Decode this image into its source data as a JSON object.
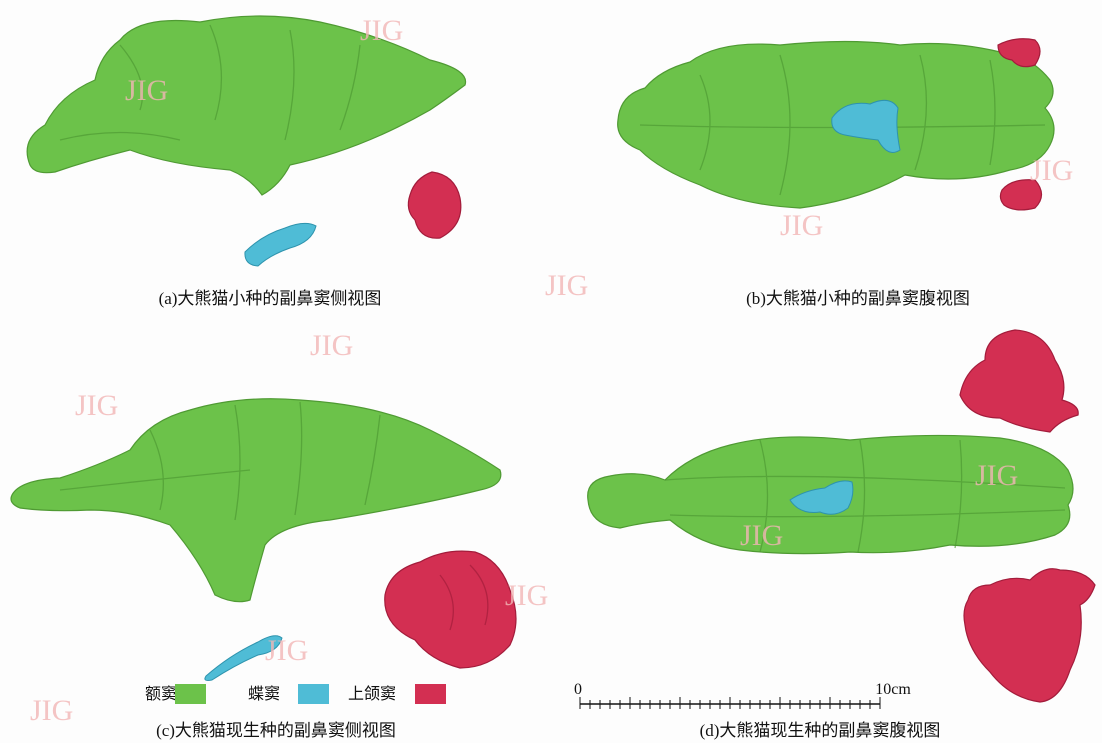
{
  "panels": [
    {
      "caption": "(a)大熊猫小种的副鼻窦侧视图"
    },
    {
      "caption": "(b)大熊猫小种的副鼻窦腹视图"
    },
    {
      "caption": "(c)大熊猫现生种的副鼻窦侧视图"
    },
    {
      "caption": "(d)大熊猫现生种的副鼻窦腹视图"
    }
  ],
  "legend": [
    {
      "label": "额窦",
      "color": "#6cc24a"
    },
    {
      "label": "蝶窦",
      "color": "#4fbcd6"
    },
    {
      "label": "上颌窦",
      "color": "#d32f52"
    }
  ],
  "scale_bar": {
    "start_label": "0",
    "end_label": "10cm"
  },
  "watermark": "JIG"
}
